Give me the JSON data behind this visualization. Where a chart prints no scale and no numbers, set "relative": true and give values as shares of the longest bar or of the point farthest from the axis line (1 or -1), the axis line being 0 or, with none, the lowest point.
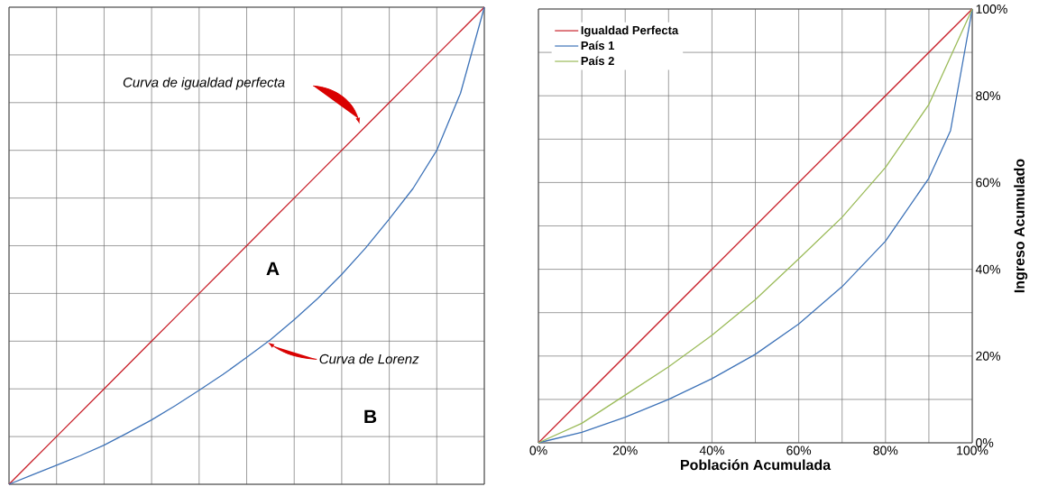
{
  "chart_data": [
    {
      "type": "line",
      "relative": true,
      "grid": true,
      "categories": [
        null,
        null,
        null,
        null,
        null,
        null,
        null,
        null,
        null,
        null,
        null,
        null,
        null,
        null,
        null,
        null,
        null,
        null,
        null,
        null,
        null
      ],
      "series": [
        {
          "color": "#c8202a",
          "values": [
            0,
            0.05,
            0.1,
            0.15,
            0.2,
            0.25,
            0.3,
            0.35,
            0.4,
            0.45,
            0.5,
            0.55,
            0.6,
            0.65,
            0.7,
            0.75,
            0.8,
            0.85,
            0.9,
            0.95,
            1
          ]
        },
        {
          "color": "#3e73b8",
          "values": [
            0,
            0.02,
            0.04,
            0.06,
            0.082,
            0.108,
            0.135,
            0.165,
            0.197,
            0.23,
            0.266,
            0.303,
            0.345,
            0.39,
            0.44,
            0.495,
            0.556,
            0.62,
            0.7,
            0.82,
            1
          ]
        }
      ],
      "annotations": [
        "Curva de igualdad perfecta",
        "Curva de Lorenz",
        "A",
        "B"
      ]
    },
    {
      "type": "line",
      "grid": true,
      "legend": "top left",
      "xlabel": "Población Acumulada",
      "ylabel": "Ingreso Acumulado",
      "x": [
        0,
        10,
        20,
        30,
        40,
        50,
        60,
        70,
        80,
        90,
        100
      ],
      "xlim": [
        0,
        100
      ],
      "ylim": [
        0,
        100
      ],
      "xticks": [
        {
          "value": 0,
          "label": "0%"
        },
        {
          "value": 10,
          "label": null
        },
        {
          "value": 20,
          "label": "20%"
        },
        {
          "value": 30,
          "label": null
        },
        {
          "value": 40,
          "label": "40%"
        },
        {
          "value": 50,
          "label": null
        },
        {
          "value": 60,
          "label": "60%"
        },
        {
          "value": 70,
          "label": null
        },
        {
          "value": 80,
          "label": "80%"
        },
        {
          "value": 90,
          "label": null
        },
        {
          "value": 100,
          "label": "100%"
        }
      ],
      "yticks": [
        {
          "value": 0,
          "label": "0%"
        },
        {
          "value": 10,
          "label": null
        },
        {
          "value": 20,
          "label": "20%"
        },
        {
          "value": 30,
          "label": null
        },
        {
          "value": 40,
          "label": "40%"
        },
        {
          "value": 50,
          "label": null
        },
        {
          "value": 60,
          "label": "60%"
        },
        {
          "value": 70,
          "label": null
        },
        {
          "value": 80,
          "label": "80%"
        },
        {
          "value": 90,
          "label": null
        },
        {
          "value": 100,
          "label": "100%"
        }
      ],
      "series": [
        {
          "name": "Igualdad Perfecta",
          "color": "#c8202a",
          "x": [
            0,
            100
          ],
          "values": [
            0,
            100
          ]
        },
        {
          "name": "País 1",
          "color": "#3e73b8",
          "x": [
            0,
            10,
            20,
            30,
            40,
            50,
            60,
            70,
            80,
            90,
            95,
            100
          ],
          "values": [
            0,
            2.4,
            5.9,
            10,
            14.8,
            20.4,
            27.4,
            36,
            46.5,
            61,
            72,
            100
          ]
        },
        {
          "name": "País 2",
          "color": "#9bbb59",
          "values": [
            0,
            4.5,
            11,
            17.5,
            24.8,
            33,
            42.4,
            52,
            63.5,
            78,
            100
          ]
        }
      ]
    }
  ]
}
